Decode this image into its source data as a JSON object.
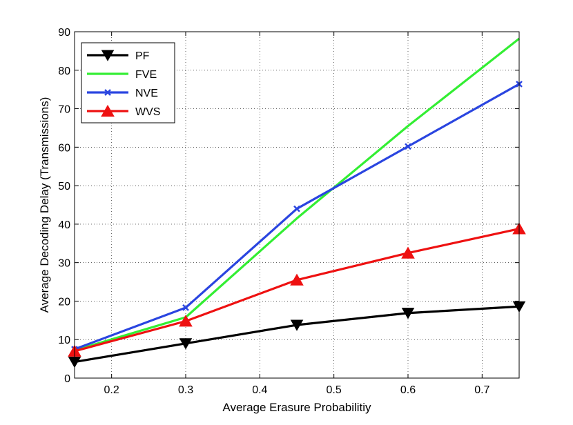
{
  "chart_data": {
    "type": "line",
    "title": "",
    "xlabel": "Average Erasure Probabilitiy",
    "ylabel": "Average Decoding Delay (Transmissions)",
    "xlim": [
      0.15,
      0.75
    ],
    "ylim": [
      0,
      90
    ],
    "xticks": [
      0.2,
      0.3,
      0.4,
      0.5,
      0.6,
      0.7
    ],
    "xtick_labels": [
      "0.2",
      "0.3",
      "0.4",
      "0.5",
      "0.6",
      "0.7"
    ],
    "yticks": [
      0,
      10,
      20,
      30,
      40,
      50,
      60,
      70,
      80,
      90
    ],
    "ytick_labels": [
      "0",
      "10",
      "20",
      "30",
      "40",
      "50",
      "60",
      "70",
      "80",
      "90"
    ],
    "grid": true,
    "legend_position": "top-left",
    "x": [
      0.15,
      0.3,
      0.45,
      0.6,
      0.75
    ],
    "series": [
      {
        "name": "PF",
        "color": "#000000",
        "marker": "triangle-down",
        "values": [
          4.2,
          9.0,
          13.8,
          16.9,
          18.6
        ]
      },
      {
        "name": "FVE",
        "color": "#33ee33",
        "marker": "none",
        "values": [
          7.2,
          15.8,
          41.5,
          65.5,
          88.2
        ]
      },
      {
        "name": "NVE",
        "color": "#2a45e0",
        "marker": "x",
        "values": [
          7.5,
          18.3,
          44.0,
          60.2,
          76.4
        ]
      },
      {
        "name": "WVS",
        "color": "#ee1111",
        "marker": "triangle-up",
        "values": [
          7.0,
          14.8,
          25.5,
          32.5,
          38.8
        ]
      }
    ]
  }
}
